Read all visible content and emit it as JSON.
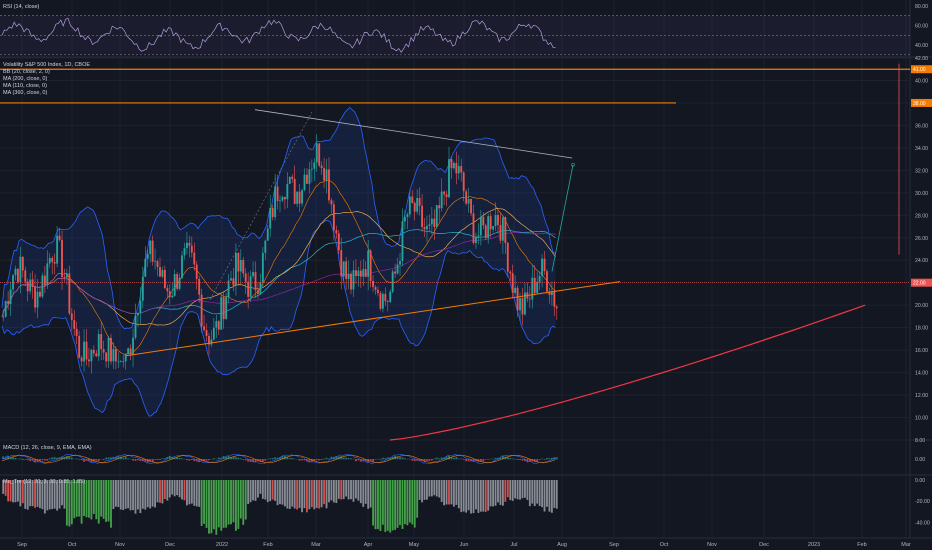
{
  "rsi": {
    "label": "RSI (14, close)",
    "ticks": [
      "80.00",
      "60.00",
      "40.00"
    ],
    "values": [
      80,
      60,
      40
    ]
  },
  "main": {
    "title": "Volatility S&P 500 Index, 1D, CBOE",
    "indicators": [
      "BB (20, close, 2, 0)",
      "MA (200, close, 0)",
      "MA (110, close, 0)",
      "MA (360, close, 0)"
    ],
    "price_ticks": [
      "42.00",
      "40.00",
      "38.00",
      "36.00",
      "34.00",
      "32.00",
      "30.00",
      "28.00",
      "26.00",
      "24.00",
      "22.00",
      "20.00",
      "18.00",
      "16.00",
      "14.00",
      "12.00",
      "10.00",
      "8.00"
    ],
    "price_values": [
      42,
      40,
      38,
      36,
      34,
      32,
      30,
      28,
      26,
      24,
      22,
      20,
      18,
      16,
      14,
      12,
      10,
      8
    ]
  },
  "macd": {
    "label": "MACD (12, 26, close, 9, EMA, EMA)",
    "ticks": [
      "0.00"
    ],
    "values": [
      0
    ]
  },
  "osc": {
    "label": "Ma_Tre (12, 30, 3, 30, 0.85, 1.85)",
    "ticks": [
      "0.00",
      "-20.00",
      "-40.00"
    ],
    "values": [
      0,
      -20,
      -40
    ]
  },
  "xaxis": {
    "labels": [
      "Sep",
      "Oct",
      "Nov",
      "Dec",
      "2022",
      "Feb",
      "Mar",
      "Apr",
      "May",
      "Jun",
      "Jul",
      "Aug",
      "Sep",
      "Oct",
      "Nov",
      "Dec",
      "2023",
      "Feb",
      "Mar"
    ]
  },
  "colors": {
    "bg": "#131722",
    "up": "#26a69a",
    "down": "#ef5350",
    "bb": "#2962ff",
    "orange": "#f57c00",
    "grid": "#1e222d"
  },
  "chart_data": {
    "type": "candlestick",
    "title": "Volatility S&P 500 Index, 1D, CBOE",
    "xlabel": "",
    "ylabel": "",
    "ylim": [
      8,
      42
    ],
    "x": [
      "Sep",
      "Oct",
      "Nov",
      "Dec",
      "2022",
      "Feb",
      "Mar",
      "Apr",
      "May",
      "Jun",
      "Jul",
      "Aug"
    ],
    "close_monthly_approx": [
      19,
      21,
      17,
      22,
      18,
      27,
      31,
      22,
      28,
      27,
      26,
      22
    ],
    "horizontal_levels": [
      41,
      38
    ],
    "last_price": 22.0
  }
}
